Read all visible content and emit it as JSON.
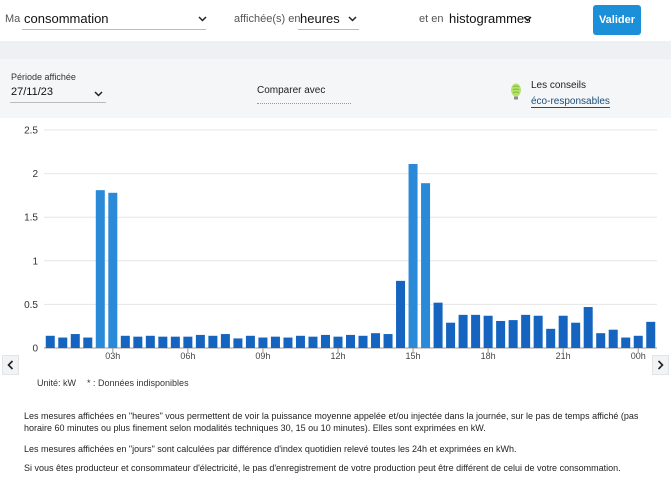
{
  "header": {
    "ma_label": "Ma",
    "measure_value": "consommation",
    "displayed_in_label": "affichée(s) en",
    "unit_value": "heures",
    "and_in_label": "et en",
    "view_value": "histogrammes",
    "submit_label": "Valider"
  },
  "period": {
    "label": "Période affichée",
    "date_value": "27/11/23",
    "compare_label": "Comparer avec",
    "tips_label": "Les conseils",
    "eco_link": "éco-responsables"
  },
  "legend": {
    "unit": "Unité: kW",
    "unavailable": "* : Données indisponibles"
  },
  "info": {
    "p1": "Les mesures affichées en \"heures\" vous permettent de voir la puissance moyenne appelée et/ou injectée dans la journée, sur le pas de temps affiché (pas horaire 60 minutes ou plus finement selon modalités techniques 30, 15 ou 10 minutes). Elles sont exprimées en kW.",
    "p2": "Les mesures affichées en \"jours\" sont calculées par différence d'index quotidien relevé toutes les 24h et exprimées en kWh.",
    "p3": "Si vous êtes producteur et consommateur d'électricité, le pas d'enregistrement de votre production peut être différent de celui de votre consommation."
  },
  "colors": {
    "bar": "#1565c0",
    "bar_light": "#2a8ad8",
    "accent": "#1b8fd8"
  },
  "chart_data": {
    "type": "bar",
    "ylim": [
      0,
      2.5
    ],
    "yticks": [
      "0",
      "0.5",
      "1",
      "1.5",
      "2",
      "2.5"
    ],
    "xticks": [
      "03h",
      "06h",
      "09h",
      "12h",
      "15h",
      "18h",
      "21h",
      "00h"
    ],
    "values": [
      0.14,
      0.12,
      0.16,
      0.12,
      1.81,
      1.78,
      0.14,
      0.13,
      0.14,
      0.13,
      0.13,
      0.13,
      0.15,
      0.14,
      0.16,
      0.11,
      0.14,
      0.12,
      0.13,
      0.12,
      0.14,
      0.13,
      0.15,
      0.13,
      0.15,
      0.14,
      0.17,
      0.16,
      0.77,
      2.11,
      1.89,
      0.52,
      0.29,
      0.38,
      0.38,
      0.37,
      0.31,
      0.32,
      0.38,
      0.37,
      0.22,
      0.37,
      0.29,
      0.47,
      0.17,
      0.21,
      0.12,
      0.14,
      0.3
    ]
  }
}
